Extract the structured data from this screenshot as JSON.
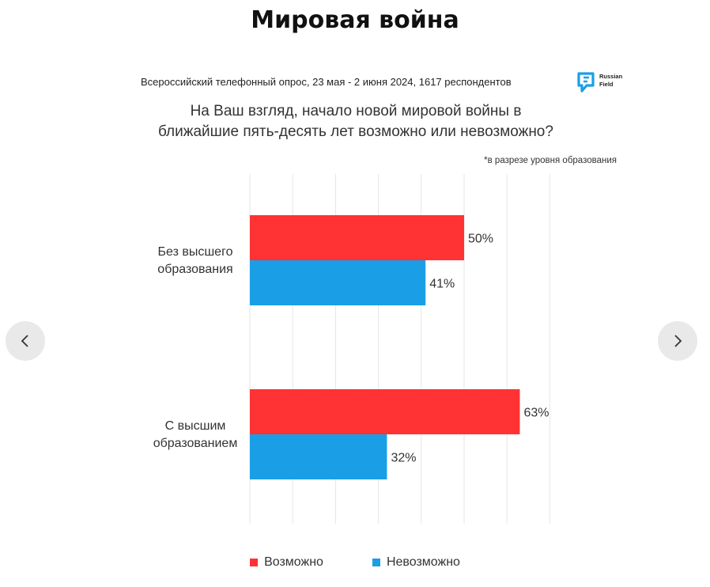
{
  "page": {
    "title": "Мировая война"
  },
  "navigation": {
    "prev_icon": "chevron-left-icon",
    "next_icon": "chevron-right-icon"
  },
  "header": {
    "survey": "Всероссийский телефонный опрос, 23 мая - 2 июня 2024, 1617 респондентов",
    "logo_text_1": "Russian",
    "logo_text_2": "Field",
    "question_line1": "На Ваш взгляд, начало новой мировой войны в",
    "question_line2": "ближайшие пять-десять лет возможно или невозможно?",
    "note": "*в разрезе уровня образования"
  },
  "colors": {
    "possible": "#ff3333",
    "impossible": "#1a9fe6",
    "grid": "#e6e6e6"
  },
  "chart_data": {
    "type": "bar",
    "orientation": "horizontal",
    "categories": [
      [
        "Без высшего",
        "образования"
      ],
      [
        "С высшим",
        "образованием"
      ]
    ],
    "series": [
      {
        "name": "Возможно",
        "values": [
          50,
          63
        ],
        "labels": [
          "50%",
          "63%"
        ]
      },
      {
        "name": "Невозможно",
        "values": [
          41,
          32
        ],
        "labels": [
          "41%",
          "32%"
        ]
      }
    ],
    "xlim": [
      0,
      70
    ],
    "grid": true,
    "legend_position": "bottom"
  }
}
